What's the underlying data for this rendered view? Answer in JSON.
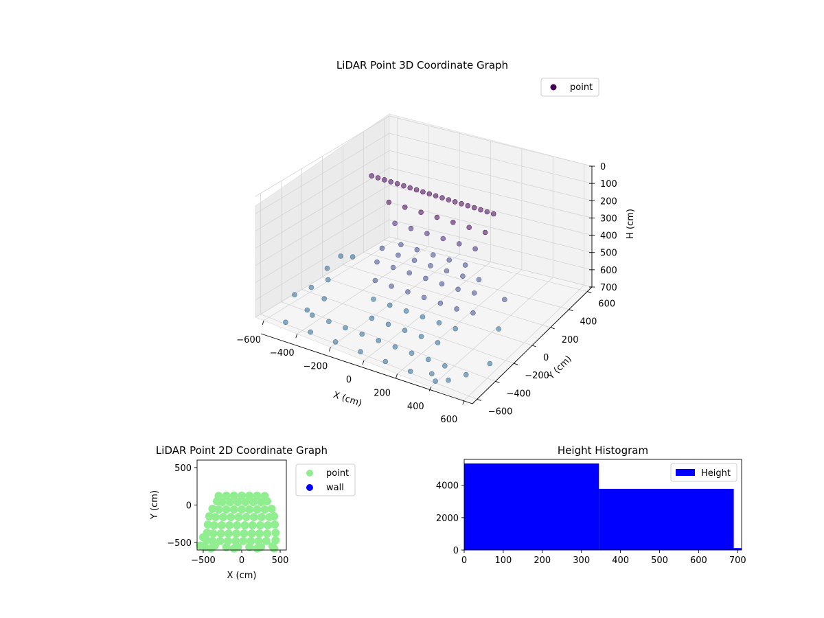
{
  "chart_data": [
    {
      "type": "scatter",
      "projection": "3d",
      "title": "LiDAR Point 3D Coordinate Graph",
      "xlabel": "X (cm)",
      "ylabel": "Y (cm)",
      "zlabel": "H (cm)",
      "xlim": [
        -650,
        650
      ],
      "ylim": [
        -650,
        650
      ],
      "zlim": [
        700,
        0
      ],
      "xticks": [
        "−600",
        "−400",
        "−200",
        "0",
        "200",
        "400",
        "600"
      ],
      "yticks": [
        "−600",
        "−400",
        "−200",
        "0",
        "200",
        "400",
        "600"
      ],
      "zticks": [
        "0",
        "100",
        "200",
        "300",
        "400",
        "500",
        "600",
        "700"
      ],
      "grid": true,
      "legend": {
        "position": "top-right",
        "entries": [
          {
            "label": "point",
            "color": "#440154"
          }
        ]
      },
      "series": [
        {
          "name": "point",
          "colors": [
            "#440154",
            "#482878",
            "#3e4a89",
            "#31688e"
          ],
          "points": [
            [
              -420,
              120,
              90
            ],
            [
              -380,
              120,
              90
            ],
            [
              -340,
              120,
              90
            ],
            [
              -300,
              120,
              90
            ],
            [
              -260,
              120,
              90
            ],
            [
              -220,
              120,
              90
            ],
            [
              -180,
              120,
              90
            ],
            [
              -140,
              120,
              90
            ],
            [
              -100,
              120,
              90
            ],
            [
              -60,
              120,
              90
            ],
            [
              -20,
              120,
              90
            ],
            [
              20,
              120,
              90
            ],
            [
              60,
              120,
              90
            ],
            [
              100,
              120,
              90
            ],
            [
              140,
              120,
              90
            ],
            [
              180,
              120,
              90
            ],
            [
              220,
              120,
              90
            ],
            [
              260,
              120,
              90
            ],
            [
              300,
              120,
              90
            ],
            [
              340,
              120,
              90
            ],
            [
              -300,
              100,
              200
            ],
            [
              -200,
              100,
              200
            ],
            [
              -100,
              100,
              200
            ],
            [
              0,
              100,
              200
            ],
            [
              100,
              100,
              200
            ],
            [
              200,
              100,
              200
            ],
            [
              300,
              100,
              200
            ],
            [
              -250,
              80,
              300
            ],
            [
              -150,
              80,
              300
            ],
            [
              -50,
              80,
              300
            ],
            [
              50,
              80,
              300
            ],
            [
              150,
              80,
              300
            ],
            [
              250,
              80,
              300
            ],
            [
              -200,
              60,
              400
            ],
            [
              -100,
              60,
              400
            ],
            [
              0,
              60,
              400
            ],
            [
              100,
              60,
              400
            ],
            [
              200,
              60,
              400
            ],
            [
              -280,
              0,
              420
            ],
            [
              -180,
              0,
              430
            ],
            [
              -80,
              0,
              430
            ],
            [
              20,
              0,
              430
            ],
            [
              120,
              0,
              430
            ],
            [
              220,
              0,
              430
            ],
            [
              320,
              0,
              420
            ],
            [
              -250,
              -100,
              450
            ],
            [
              -150,
              -100,
              450
            ],
            [
              -50,
              -100,
              450
            ],
            [
              50,
              -100,
              450
            ],
            [
              150,
              -100,
              450
            ],
            [
              250,
              -100,
              450
            ],
            [
              350,
              -100,
              440
            ],
            [
              -200,
              -200,
              500
            ],
            [
              -100,
              -200,
              500
            ],
            [
              0,
              -200,
              500
            ],
            [
              100,
              -200,
              500
            ],
            [
              200,
              -200,
              500
            ],
            [
              300,
              -200,
              500
            ],
            [
              400,
              -200,
              490
            ],
            [
              -150,
              -300,
              550
            ],
            [
              -50,
              -300,
              550
            ],
            [
              50,
              -300,
              550
            ],
            [
              150,
              -300,
              550
            ],
            [
              250,
              -300,
              550
            ],
            [
              350,
              -300,
              550
            ],
            [
              -100,
              -400,
              600
            ],
            [
              0,
              -400,
              600
            ],
            [
              100,
              -400,
              600
            ],
            [
              200,
              -400,
              600
            ],
            [
              300,
              -400,
              600
            ],
            [
              -400,
              -500,
              650
            ],
            [
              -300,
              -500,
              650
            ],
            [
              -200,
              -500,
              650
            ],
            [
              -100,
              -500,
              650
            ],
            [
              0,
              -500,
              650
            ],
            [
              100,
              -500,
              650
            ],
            [
              200,
              -500,
              650
            ],
            [
              300,
              -500,
              650
            ],
            [
              400,
              -500,
              650
            ],
            [
              -500,
              -600,
              690
            ],
            [
              -350,
              -600,
              690
            ],
            [
              -200,
              -600,
              690
            ],
            [
              -50,
              -600,
              690
            ],
            [
              100,
              -600,
              690
            ],
            [
              250,
              -600,
              690
            ],
            [
              400,
              -600,
              690
            ],
            [
              -560,
              -250,
              640
            ],
            [
              -520,
              -150,
              620
            ],
            [
              -600,
              -350,
              660
            ],
            [
              -480,
              -420,
              680
            ],
            [
              500,
              -450,
              690
            ],
            [
              560,
              -300,
              680
            ],
            [
              450,
              -550,
              690
            ],
            [
              -620,
              0,
              640
            ],
            [
              -600,
              100,
              600
            ],
            [
              -500,
              60,
              560
            ],
            [
              450,
              50,
              520
            ],
            [
              500,
              -100,
              600
            ],
            [
              -450,
              -300,
              650
            ],
            [
              350,
              -550,
              690
            ]
          ]
        }
      ]
    },
    {
      "type": "scatter",
      "title": "LiDAR Point 2D Coordinate Graph",
      "xlabel": "X (cm)",
      "ylabel": "Y (cm)",
      "xlim": [
        -580,
        580
      ],
      "ylim": [
        -600,
        600
      ],
      "xticks": [
        -500,
        0,
        500
      ],
      "yticks": [
        -500,
        0,
        500
      ],
      "grid": false,
      "legend": {
        "position": "outside-right",
        "entries": [
          {
            "label": "point",
            "color": "#90ee90"
          },
          {
            "label": "wall",
            "color": "#0000ff"
          }
        ]
      },
      "series": [
        {
          "name": "point",
          "color": "#90ee90",
          "points": [
            [
              -300,
              120
            ],
            [
              -200,
              125
            ],
            [
              -100,
              125
            ],
            [
              0,
              125
            ],
            [
              100,
              125
            ],
            [
              200,
              125
            ],
            [
              300,
              120
            ],
            [
              -320,
              50
            ],
            [
              -250,
              40
            ],
            [
              -150,
              40
            ],
            [
              -50,
              40
            ],
            [
              50,
              40
            ],
            [
              150,
              40
            ],
            [
              250,
              40
            ],
            [
              330,
              50
            ],
            [
              -380,
              -50
            ],
            [
              -300,
              -60
            ],
            [
              -200,
              -60
            ],
            [
              -100,
              -60
            ],
            [
              0,
              -60
            ],
            [
              100,
              -60
            ],
            [
              200,
              -60
            ],
            [
              300,
              -60
            ],
            [
              390,
              -50
            ],
            [
              -420,
              -150
            ],
            [
              -340,
              -160
            ],
            [
              -240,
              -160
            ],
            [
              -140,
              -160
            ],
            [
              -40,
              -160
            ],
            [
              60,
              -160
            ],
            [
              160,
              -160
            ],
            [
              260,
              -160
            ],
            [
              360,
              -160
            ],
            [
              420,
              -150
            ],
            [
              -440,
              -260
            ],
            [
              -360,
              -270
            ],
            [
              -260,
              -270
            ],
            [
              -160,
              -270
            ],
            [
              -60,
              -270
            ],
            [
              40,
              -270
            ],
            [
              140,
              -270
            ],
            [
              240,
              -270
            ],
            [
              340,
              -270
            ],
            [
              430,
              -260
            ],
            [
              -450,
              -370
            ],
            [
              -370,
              -380
            ],
            [
              -270,
              -380
            ],
            [
              -170,
              -380
            ],
            [
              -70,
              -380
            ],
            [
              30,
              -380
            ],
            [
              130,
              -380
            ],
            [
              230,
              -380
            ],
            [
              330,
              -380
            ],
            [
              440,
              -370
            ],
            [
              -460,
              -470
            ],
            [
              -380,
              -480
            ],
            [
              -280,
              -480
            ],
            [
              -180,
              -480
            ],
            [
              -80,
              -480
            ],
            [
              20,
              -480
            ],
            [
              120,
              -480
            ],
            [
              220,
              -480
            ],
            [
              320,
              -480
            ],
            [
              440,
              -470
            ],
            [
              -500,
              -430
            ],
            [
              -480,
              -560
            ],
            [
              -350,
              -540
            ],
            [
              -200,
              -560
            ],
            [
              -50,
              -560
            ],
            [
              100,
              -560
            ],
            [
              250,
              -560
            ],
            [
              400,
              -550
            ],
            [
              -540,
              -540
            ],
            [
              -400,
              -580
            ],
            [
              -100,
              -580
            ],
            [
              200,
              -580
            ],
            [
              420,
              -580
            ]
          ]
        },
        {
          "name": "wall",
          "color": "#0000ff",
          "points": []
        }
      ]
    },
    {
      "type": "bar",
      "subtype": "histogram",
      "title": "Height Histogram",
      "xlabel": "",
      "ylabel": "",
      "xlim": [
        0,
        710
      ],
      "ylim": [
        0,
        5600
      ],
      "xticks": [
        0,
        100,
        200,
        300,
        400,
        500,
        600,
        700
      ],
      "yticks": [
        0,
        2000,
        4000
      ],
      "grid": false,
      "legend": {
        "position": "top-right",
        "entries": [
          {
            "label": "Height",
            "color": "#0000ff"
          }
        ]
      },
      "bins": [
        [
          0,
          345
        ],
        [
          345,
          690
        ],
        [
          690,
          710
        ]
      ],
      "values": [
        5350,
        3780,
        120
      ],
      "color": "#0000ff"
    }
  ]
}
